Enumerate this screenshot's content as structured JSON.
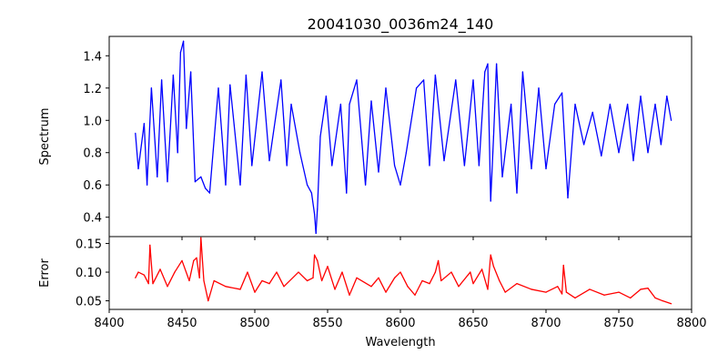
{
  "chart_data": {
    "type": "line",
    "title": "20041030_0036m24_140",
    "xlabel": "Wavelength",
    "xlim": [
      8400,
      8800
    ],
    "x_tick_labels": [
      "8400",
      "8450",
      "8500",
      "8550",
      "8600",
      "8650",
      "8700",
      "8750",
      "8800"
    ],
    "x_range_data": [
      8418,
      8786
    ],
    "panels": [
      {
        "name": "spectrum",
        "ylabel": "Spectrum",
        "ylim": [
          0.28,
          1.52
        ],
        "y_tick_labels": [
          "0.4",
          "0.6",
          "0.8",
          "1.0",
          "1.2",
          "1.4"
        ],
        "y_ticks": [
          0.4,
          0.6,
          0.8,
          1.0,
          1.2,
          1.4
        ],
        "color": "#0000ff",
        "anchors": [
          [
            8418,
            0.92
          ],
          [
            8420,
            0.7
          ],
          [
            8424,
            0.98
          ],
          [
            8426,
            0.6
          ],
          [
            8429,
            1.2
          ],
          [
            8433,
            0.65
          ],
          [
            8436,
            1.25
          ],
          [
            8440,
            0.62
          ],
          [
            8444,
            1.28
          ],
          [
            8447,
            0.8
          ],
          [
            8449,
            1.42
          ],
          [
            8451,
            1.49
          ],
          [
            8453,
            0.95
          ],
          [
            8456,
            1.3
          ],
          [
            8459,
            0.62
          ],
          [
            8463,
            0.65
          ],
          [
            8466,
            0.58
          ],
          [
            8469,
            0.55
          ],
          [
            8475,
            1.2
          ],
          [
            8480,
            0.6
          ],
          [
            8483,
            1.22
          ],
          [
            8490,
            0.6
          ],
          [
            8494,
            1.28
          ],
          [
            8498,
            0.72
          ],
          [
            8505,
            1.3
          ],
          [
            8510,
            0.75
          ],
          [
            8518,
            1.25
          ],
          [
            8522,
            0.72
          ],
          [
            8525,
            1.1
          ],
          [
            8531,
            0.8
          ],
          [
            8536,
            0.6
          ],
          [
            8539,
            0.55
          ],
          [
            8541,
            0.42
          ],
          [
            8542,
            0.3
          ],
          [
            8543,
            0.45
          ],
          [
            8545,
            0.9
          ],
          [
            8549,
            1.15
          ],
          [
            8553,
            0.72
          ],
          [
            8559,
            1.1
          ],
          [
            8563,
            0.55
          ],
          [
            8565,
            1.1
          ],
          [
            8570,
            1.25
          ],
          [
            8576,
            0.6
          ],
          [
            8580,
            1.12
          ],
          [
            8585,
            0.68
          ],
          [
            8590,
            1.2
          ],
          [
            8596,
            0.72
          ],
          [
            8600,
            0.6
          ],
          [
            8604,
            0.8
          ],
          [
            8611,
            1.2
          ],
          [
            8616,
            1.25
          ],
          [
            8620,
            0.72
          ],
          [
            8624,
            1.28
          ],
          [
            8630,
            0.75
          ],
          [
            8638,
            1.25
          ],
          [
            8644,
            0.72
          ],
          [
            8650,
            1.25
          ],
          [
            8654,
            0.72
          ],
          [
            8658,
            1.3
          ],
          [
            8660,
            1.35
          ],
          [
            8662,
            0.5
          ],
          [
            8664,
            0.9
          ],
          [
            8666,
            1.35
          ],
          [
            8670,
            0.65
          ],
          [
            8676,
            1.1
          ],
          [
            8680,
            0.55
          ],
          [
            8684,
            1.3
          ],
          [
            8690,
            0.7
          ],
          [
            8695,
            1.2
          ],
          [
            8700,
            0.7
          ],
          [
            8706,
            1.1
          ],
          [
            8711,
            1.17
          ],
          [
            8715,
            0.52
          ],
          [
            8720,
            1.1
          ],
          [
            8726,
            0.85
          ],
          [
            8732,
            1.05
          ],
          [
            8738,
            0.78
          ],
          [
            8744,
            1.1
          ],
          [
            8750,
            0.8
          ],
          [
            8756,
            1.1
          ],
          [
            8760,
            0.75
          ],
          [
            8765,
            1.15
          ],
          [
            8770,
            0.8
          ],
          [
            8775,
            1.1
          ],
          [
            8779,
            0.85
          ],
          [
            8783,
            1.15
          ],
          [
            8786,
            1.0
          ]
        ]
      },
      {
        "name": "error",
        "ylabel": "Error",
        "ylim": [
          0.035,
          0.162
        ],
        "y_tick_labels": [
          "0.05",
          "0.10",
          "0.15"
        ],
        "y_ticks": [
          0.05,
          0.1,
          0.15
        ],
        "color": "#ff0000",
        "anchors": [
          [
            8418,
            0.09
          ],
          [
            8420,
            0.1
          ],
          [
            8424,
            0.095
          ],
          [
            8427,
            0.08
          ],
          [
            8428,
            0.147
          ],
          [
            8430,
            0.08
          ],
          [
            8435,
            0.105
          ],
          [
            8440,
            0.075
          ],
          [
            8445,
            0.1
          ],
          [
            8450,
            0.12
          ],
          [
            8455,
            0.085
          ],
          [
            8458,
            0.12
          ],
          [
            8460,
            0.125
          ],
          [
            8462,
            0.09
          ],
          [
            8463,
            0.16
          ],
          [
            8465,
            0.085
          ],
          [
            8468,
            0.05
          ],
          [
            8472,
            0.085
          ],
          [
            8480,
            0.075
          ],
          [
            8490,
            0.07
          ],
          [
            8495,
            0.1
          ],
          [
            8500,
            0.065
          ],
          [
            8505,
            0.085
          ],
          [
            8510,
            0.08
          ],
          [
            8515,
            0.1
          ],
          [
            8520,
            0.075
          ],
          [
            8530,
            0.1
          ],
          [
            8536,
            0.085
          ],
          [
            8540,
            0.09
          ],
          [
            8541,
            0.13
          ],
          [
            8543,
            0.12
          ],
          [
            8546,
            0.085
          ],
          [
            8550,
            0.11
          ],
          [
            8555,
            0.07
          ],
          [
            8560,
            0.1
          ],
          [
            8565,
            0.06
          ],
          [
            8570,
            0.09
          ],
          [
            8580,
            0.075
          ],
          [
            8585,
            0.09
          ],
          [
            8590,
            0.065
          ],
          [
            8596,
            0.09
          ],
          [
            8600,
            0.1
          ],
          [
            8605,
            0.075
          ],
          [
            8610,
            0.06
          ],
          [
            8615,
            0.085
          ],
          [
            8620,
            0.08
          ],
          [
            8624,
            0.1
          ],
          [
            8626,
            0.12
          ],
          [
            8628,
            0.085
          ],
          [
            8635,
            0.1
          ],
          [
            8640,
            0.075
          ],
          [
            8648,
            0.1
          ],
          [
            8650,
            0.08
          ],
          [
            8656,
            0.105
          ],
          [
            8660,
            0.07
          ],
          [
            8662,
            0.13
          ],
          [
            8664,
            0.11
          ],
          [
            8668,
            0.085
          ],
          [
            8672,
            0.065
          ],
          [
            8680,
            0.08
          ],
          [
            8690,
            0.07
          ],
          [
            8700,
            0.065
          ],
          [
            8708,
            0.075
          ],
          [
            8711,
            0.062
          ],
          [
            8712,
            0.112
          ],
          [
            8714,
            0.065
          ],
          [
            8720,
            0.055
          ],
          [
            8730,
            0.07
          ],
          [
            8740,
            0.06
          ],
          [
            8750,
            0.065
          ],
          [
            8758,
            0.055
          ],
          [
            8765,
            0.07
          ],
          [
            8770,
            0.072
          ],
          [
            8775,
            0.055
          ],
          [
            8780,
            0.05
          ],
          [
            8786,
            0.045
          ]
        ]
      }
    ]
  }
}
